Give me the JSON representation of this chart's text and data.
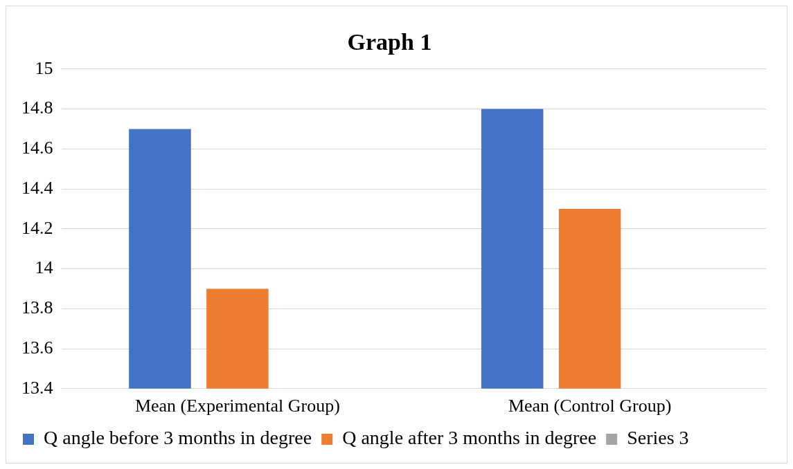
{
  "chart_data": {
    "type": "bar",
    "title": "Graph 1",
    "categories": [
      "Mean (Experimental Group)",
      "Mean (Control Group)"
    ],
    "series": [
      {
        "name": "Q angle before 3 months in degree",
        "color": "#4472c4",
        "values": [
          14.7,
          14.8
        ]
      },
      {
        "name": "Q angle after 3 months in degree",
        "color": "#ed7d31",
        "values": [
          13.9,
          14.3
        ]
      },
      {
        "name": "Series 3",
        "color": "#a5a5a5",
        "values": [
          null,
          null
        ]
      }
    ],
    "ylim": [
      13.4,
      15
    ],
    "yticks": [
      13.4,
      13.6,
      13.8,
      14,
      14.2,
      14.4,
      14.6,
      14.8,
      15
    ],
    "grid": "y",
    "legend": "bottom"
  }
}
